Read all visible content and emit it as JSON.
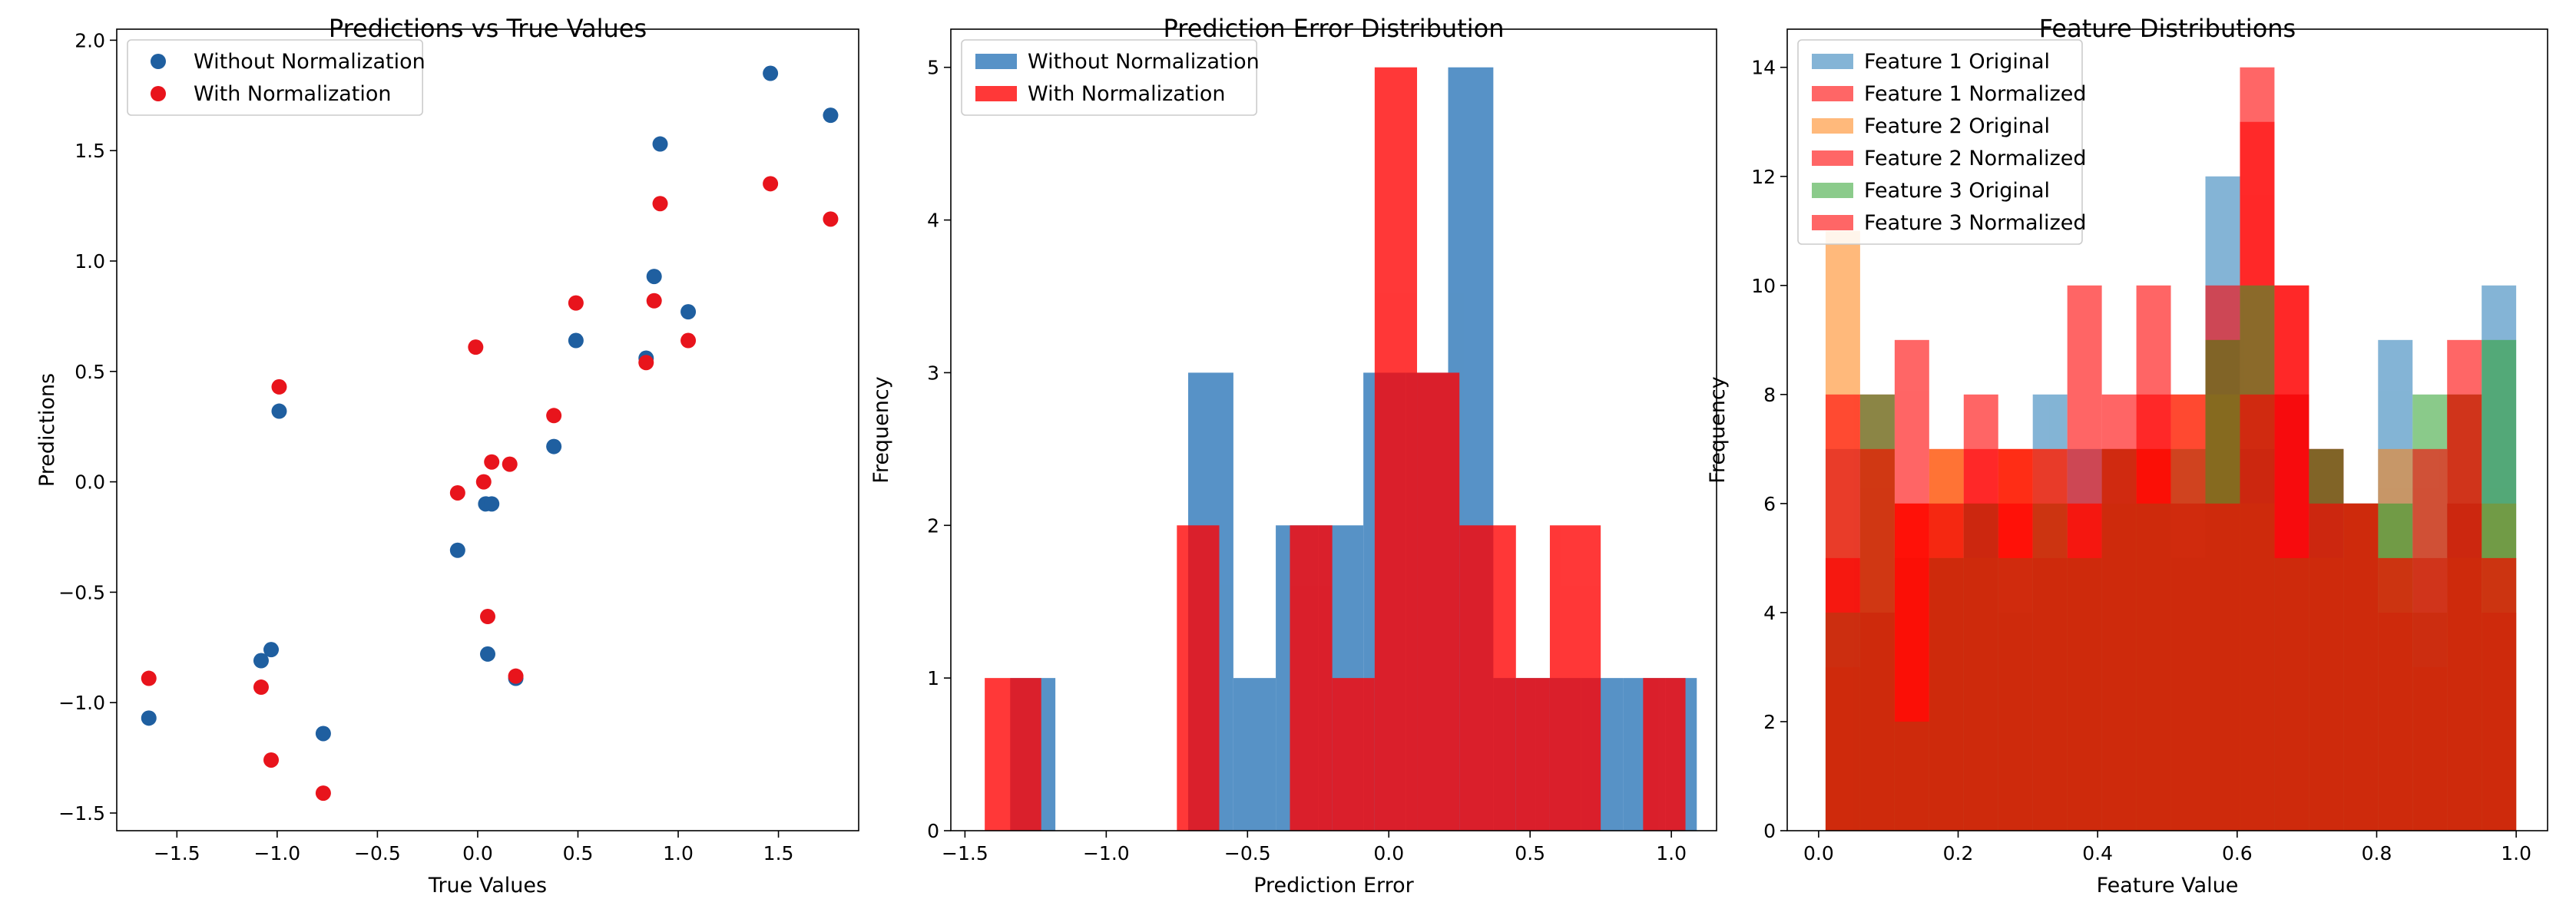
{
  "chart_data": [
    {
      "type": "scatter",
      "title": "Predictions vs True Values",
      "xlabel": "True Values",
      "ylabel": "Predictions",
      "xlim": [
        -1.8,
        1.9
      ],
      "ylim": [
        -1.58,
        2.05
      ],
      "xticks": [
        -1.5,
        -1.0,
        -0.5,
        0.0,
        0.5,
        1.0,
        1.5
      ],
      "xtick_labels": [
        "−1.5",
        "−1.0",
        "−0.5",
        "0.0",
        "0.5",
        "1.0",
        "1.5"
      ],
      "yticks": [
        -1.5,
        -1.0,
        -0.5,
        0.0,
        0.5,
        1.0,
        1.5,
        2.0
      ],
      "ytick_labels": [
        "−1.5",
        "−1.0",
        "−0.5",
        "0.0",
        "0.5",
        "1.0",
        "1.5",
        "2.0"
      ],
      "legend_position": "upper-left",
      "series": [
        {
          "name": "Without Normalization",
          "color": "#1f5fa0",
          "points": [
            [
              -1.64,
              -1.07
            ],
            [
              -1.08,
              -0.81
            ],
            [
              -1.03,
              -0.76
            ],
            [
              -0.99,
              0.32
            ],
            [
              -0.77,
              -1.14
            ],
            [
              -0.1,
              -0.31
            ],
            [
              0.04,
              -0.1
            ],
            [
              0.05,
              -0.78
            ],
            [
              0.07,
              -0.1
            ],
            [
              0.19,
              -0.89
            ],
            [
              0.38,
              0.16
            ],
            [
              0.49,
              0.64
            ],
            [
              0.84,
              0.56
            ],
            [
              0.88,
              0.93
            ],
            [
              0.91,
              1.53
            ],
            [
              1.05,
              0.77
            ],
            [
              1.46,
              1.85
            ],
            [
              1.76,
              1.66
            ]
          ]
        },
        {
          "name": "With Normalization",
          "color": "#e8141c",
          "points": [
            [
              -1.64,
              -0.89
            ],
            [
              -1.08,
              -0.93
            ],
            [
              -1.03,
              -1.26
            ],
            [
              -0.99,
              0.43
            ],
            [
              -0.77,
              -1.41
            ],
            [
              -0.1,
              -0.05
            ],
            [
              -0.01,
              0.61
            ],
            [
              0.03,
              0.0
            ],
            [
              0.05,
              -0.61
            ],
            [
              0.07,
              0.09
            ],
            [
              0.16,
              0.08
            ],
            [
              0.19,
              -0.88
            ],
            [
              0.38,
              0.3
            ],
            [
              0.49,
              0.81
            ],
            [
              0.84,
              0.54
            ],
            [
              0.88,
              0.82
            ],
            [
              0.91,
              1.26
            ],
            [
              1.05,
              0.64
            ],
            [
              1.46,
              1.35
            ],
            [
              1.76,
              1.19
            ]
          ]
        }
      ]
    },
    {
      "type": "histogram",
      "title": "Prediction Error Distribution",
      "xlabel": "Prediction Error",
      "ylabel": "Frequency",
      "xlim": [
        -1.55,
        1.16
      ],
      "ylim": [
        0,
        5.25
      ],
      "xticks": [
        -1.5,
        -1.0,
        -0.5,
        0.0,
        0.5,
        1.0
      ],
      "xtick_labels": [
        "−1.5",
        "−1.0",
        "−0.5",
        "0.0",
        "0.5",
        "1.0"
      ],
      "yticks": [
        0,
        1,
        2,
        3,
        4,
        5
      ],
      "ytick_labels": [
        "0",
        "1",
        "2",
        "3",
        "4",
        "5"
      ],
      "legend_position": "upper-left",
      "series": [
        {
          "name": "Without Normalization",
          "color": "#1f6eb4",
          "alpha": 0.75,
          "bins": [
            [
              -1.34,
              -1.18,
              1
            ],
            [
              -1.18,
              -1.02,
              0
            ],
            [
              -1.02,
              -0.86,
              0
            ],
            [
              -0.86,
              -0.71,
              0
            ],
            [
              -0.71,
              -0.55,
              3
            ],
            [
              -0.55,
              -0.4,
              1
            ],
            [
              -0.4,
              -0.25,
              2
            ],
            [
              -0.25,
              -0.09,
              2
            ],
            [
              -0.09,
              0.06,
              3
            ],
            [
              0.06,
              0.21,
              3
            ],
            [
              0.21,
              0.37,
              5
            ],
            [
              0.37,
              0.52,
              1
            ],
            [
              0.52,
              0.68,
              1
            ],
            [
              0.68,
              0.83,
              1
            ],
            [
              0.83,
              0.98,
              1
            ],
            [
              0.98,
              1.09,
              1
            ]
          ]
        },
        {
          "name": "With Normalization",
          "color": "#ff0000",
          "alpha": 0.78,
          "bins": [
            [
              -1.43,
              -1.23,
              1
            ],
            [
              -1.23,
              -1.02,
              0
            ],
            [
              -1.02,
              -0.81,
              0
            ],
            [
              -0.81,
              -0.61,
              0
            ],
            [
              -0.75,
              -0.6,
              2
            ],
            [
              -0.6,
              -0.46,
              0
            ],
            [
              -0.35,
              -0.2,
              2
            ],
            [
              -0.2,
              -0.05,
              1
            ],
            [
              -0.05,
              0.1,
              5
            ],
            [
              0.1,
              0.25,
              3
            ],
            [
              0.25,
              0.45,
              2
            ],
            [
              0.45,
              0.57,
              1
            ],
            [
              0.57,
              0.75,
              2
            ],
            [
              0.75,
              0.9,
              0
            ],
            [
              0.9,
              1.05,
              1
            ]
          ]
        }
      ]
    },
    {
      "type": "histogram",
      "title": "Feature Distributions",
      "xlabel": "Feature Value",
      "ylabel": "Frequency",
      "xlim": [
        -0.045,
        1.045
      ],
      "ylim": [
        0,
        14.7
      ],
      "xticks": [
        0.0,
        0.2,
        0.4,
        0.6,
        0.8,
        1.0
      ],
      "xtick_labels": [
        "0.0",
        "0.2",
        "0.4",
        "0.6",
        "0.8",
        "1.0"
      ],
      "yticks": [
        0,
        2,
        4,
        6,
        8,
        10,
        12,
        14
      ],
      "ytick_labels": [
        "0",
        "2",
        "4",
        "6",
        "8",
        "10",
        "12",
        "14"
      ],
      "legend_position": "upper-left",
      "series": [
        {
          "name": "Feature 1 Original",
          "color": "#1f77b4",
          "alpha": 0.55,
          "range": [
            0.01,
            1.0
          ],
          "counts": [
            7,
            4,
            5,
            6,
            6,
            4,
            8,
            7,
            6,
            7,
            5,
            12,
            7,
            8,
            7,
            6,
            9,
            4,
            6,
            10
          ]
        },
        {
          "name": "Feature 1 Normalized",
          "color": "#ff0000",
          "alpha": 0.6,
          "range": [
            0.01,
            1.0
          ],
          "counts": [
            3,
            8,
            6,
            7,
            6,
            7,
            6,
            5,
            7,
            8,
            6,
            10,
            13,
            10,
            7,
            6,
            5,
            3,
            6,
            5
          ]
        },
        {
          "name": "Feature 2 Original",
          "color": "#ff7f0e",
          "alpha": 0.55,
          "range": [
            0.01,
            1.0
          ],
          "counts": [
            11,
            7,
            6,
            7,
            5,
            7,
            7,
            6,
            6,
            7,
            8,
            8,
            6,
            5,
            5,
            6,
            7,
            4,
            5,
            6
          ]
        },
        {
          "name": "Feature 2 Normalized",
          "color": "#ff0000",
          "alpha": 0.6,
          "range": [
            0.01,
            1.0
          ],
          "counts": [
            8,
            4,
            9,
            6,
            8,
            7,
            5,
            10,
            7,
            10,
            6,
            9,
            14,
            8,
            7,
            6,
            4,
            5,
            9,
            4
          ]
        },
        {
          "name": "Feature 3 Original",
          "color": "#2ca02c",
          "alpha": 0.55,
          "range": [
            0.01,
            1.0
          ],
          "counts": [
            4,
            8,
            2,
            5,
            6,
            5,
            6,
            5,
            7,
            6,
            7,
            9,
            10,
            5,
            7,
            6,
            6,
            8,
            8,
            9
          ]
        },
        {
          "name": "Feature 3 Normalized",
          "color": "#ff0000",
          "alpha": 0.6,
          "range": [
            0.01,
            1.0
          ],
          "counts": [
            5,
            7,
            6,
            5,
            7,
            6,
            7,
            6,
            8,
            7,
            8,
            6,
            8,
            10,
            6,
            6,
            5,
            7,
            8,
            5
          ]
        }
      ]
    }
  ]
}
